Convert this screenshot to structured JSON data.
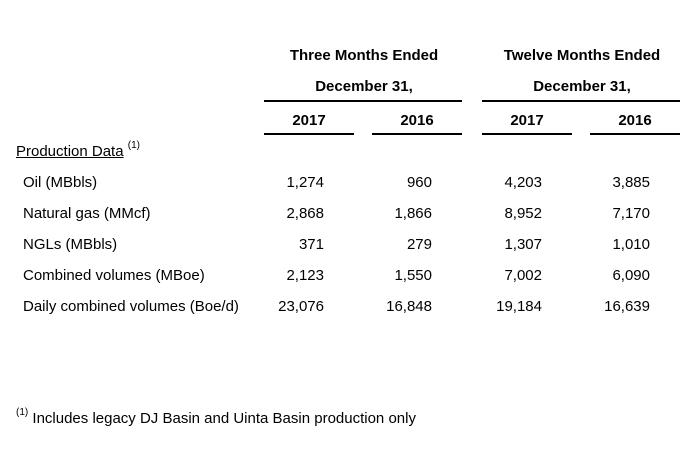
{
  "header": {
    "three_months_title": "Three Months Ended",
    "three_months_date": "December 31,",
    "twelve_months_title": "Twelve Months Ended",
    "twelve_months_date": "December 31,",
    "years": [
      "2017",
      "2016",
      "2017",
      "2016"
    ]
  },
  "section": {
    "label": "Production Data",
    "footnote_marker": "(1)"
  },
  "rows": [
    {
      "label": "Oil (MBbls)",
      "values": [
        "1,274",
        "960",
        "4,203",
        "3,885"
      ]
    },
    {
      "label": "Natural gas (MMcf)",
      "values": [
        "2,868",
        "1,866",
        "8,952",
        "7,170"
      ]
    },
    {
      "label": "NGLs (MBbls)",
      "values": [
        "371",
        "279",
        "1,307",
        "1,010"
      ]
    },
    {
      "label": "Combined volumes (MBoe)",
      "values": [
        "2,123",
        "1,550",
        "7,002",
        "6,090"
      ]
    },
    {
      "label": "Daily combined volumes (Boe/d)",
      "values": [
        "23,076",
        "16,848",
        "19,184",
        "16,639"
      ]
    }
  ],
  "footnote": {
    "marker": "(1)",
    "text": "Includes legacy DJ Basin and Uinta Basin production only"
  }
}
